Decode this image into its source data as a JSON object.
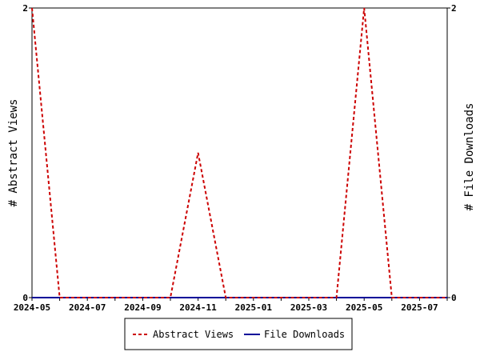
{
  "chart_data": {
    "type": "line",
    "y_left_label": "# Abstract Views",
    "y_right_label": "# File Downloads",
    "x_ticks": [
      "2024-05",
      "2024-07",
      "2024-09",
      "2024-11",
      "2025-01",
      "2025-03",
      "2025-05",
      "2025-07"
    ],
    "x_range": [
      "2024-05",
      "2025-08"
    ],
    "y_left_ticks": [
      "0",
      "2"
    ],
    "y_right_ticks": [
      "0",
      "2"
    ],
    "ylim_left": [
      0,
      2
    ],
    "ylim_right": [
      0,
      2
    ],
    "x": [
      "2024-05",
      "2024-06",
      "2024-07",
      "2024-08",
      "2024-09",
      "2024-10",
      "2024-11",
      "2024-12",
      "2025-01",
      "2025-02",
      "2025-03",
      "2025-04",
      "2025-05",
      "2025-06",
      "2025-07",
      "2025-08"
    ],
    "series": [
      {
        "name": "Abstract Views",
        "axis": "left",
        "color": "#cc0000",
        "style": "dashed",
        "values": [
          2,
          0,
          0,
          0,
          0,
          0,
          1,
          0,
          0,
          0,
          0,
          0,
          2,
          0,
          0,
          0
        ]
      },
      {
        "name": "File Downloads",
        "axis": "right",
        "color": "#000099",
        "style": "solid",
        "values": [
          0,
          0,
          0,
          0,
          0,
          0,
          0,
          0,
          0,
          0,
          0,
          0,
          0,
          0,
          0,
          0
        ]
      }
    ],
    "grid": false,
    "legend_position": "bottom"
  }
}
